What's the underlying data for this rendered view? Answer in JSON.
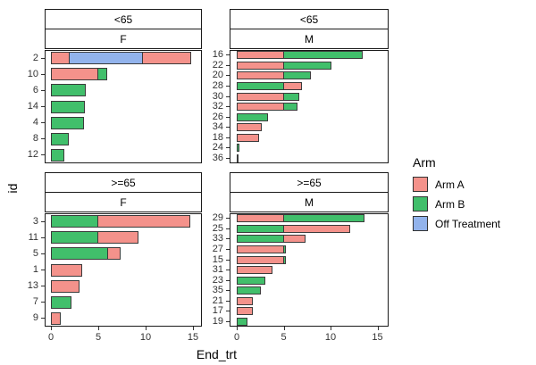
{
  "figure": {
    "y_axis_title": "id",
    "x_axis_title": "End_trt",
    "legend": {
      "title": "Arm",
      "entries": [
        {
          "label": "Arm A",
          "color": "#F4928B"
        },
        {
          "label": "Arm B",
          "color": "#41BF6B"
        },
        {
          "label": "Off Treatment",
          "color": "#92B3EC"
        }
      ]
    }
  },
  "chart_data": {
    "type": "bar",
    "orientation": "horizontal",
    "stacked": true,
    "title": "",
    "xlabel": "End_trt",
    "ylabel": "id",
    "xlim": [
      0,
      15
    ],
    "x_ticks": [
      0,
      5,
      10,
      15
    ],
    "grid": false,
    "legend_position": "right",
    "arm_colors": {
      "Arm A": "#F4928B",
      "Arm B": "#41BF6B",
      "Off Treatment": "#92B3EC"
    },
    "facets": [
      {
        "row": "top",
        "col": "left",
        "age_label": "<65",
        "sex_label": "F",
        "bars": [
          {
            "id": "2",
            "segments": [
              {
                "arm": "Arm A",
                "value": 2.0
              },
              {
                "arm": "Off Treatment",
                "value": 7.8
              },
              {
                "arm": "Arm A",
                "value": 5.2
              }
            ]
          },
          {
            "id": "10",
            "segments": [
              {
                "arm": "Arm A",
                "value": 5.0
              },
              {
                "arm": "Arm B",
                "value": 1.0
              }
            ]
          },
          {
            "id": "6",
            "segments": [
              {
                "arm": "Arm B",
                "value": 3.7
              }
            ]
          },
          {
            "id": "14",
            "segments": [
              {
                "arm": "Arm B",
                "value": 3.6
              }
            ]
          },
          {
            "id": "4",
            "segments": [
              {
                "arm": "Arm B",
                "value": 3.5
              }
            ]
          },
          {
            "id": "8",
            "segments": [
              {
                "arm": "Arm B",
                "value": 1.9
              }
            ]
          },
          {
            "id": "12",
            "segments": [
              {
                "arm": "Arm B",
                "value": 1.4
              }
            ]
          }
        ]
      },
      {
        "row": "top",
        "col": "right",
        "age_label": "<65",
        "sex_label": "M",
        "bars": [
          {
            "id": "16",
            "segments": [
              {
                "arm": "Arm A",
                "value": 5.0
              },
              {
                "arm": "Arm B",
                "value": 8.5
              }
            ]
          },
          {
            "id": "22",
            "segments": [
              {
                "arm": "Arm A",
                "value": 5.0
              },
              {
                "arm": "Arm B",
                "value": 5.2
              }
            ]
          },
          {
            "id": "20",
            "segments": [
              {
                "arm": "Arm A",
                "value": 5.0
              },
              {
                "arm": "Arm B",
                "value": 3.0
              }
            ]
          },
          {
            "id": "28",
            "segments": [
              {
                "arm": "Arm B",
                "value": 5.0
              },
              {
                "arm": "Arm A",
                "value": 2.0
              }
            ]
          },
          {
            "id": "30",
            "segments": [
              {
                "arm": "Arm A",
                "value": 5.0
              },
              {
                "arm": "Arm B",
                "value": 1.8
              }
            ]
          },
          {
            "id": "32",
            "segments": [
              {
                "arm": "Arm A",
                "value": 5.0
              },
              {
                "arm": "Arm B",
                "value": 1.6
              }
            ]
          },
          {
            "id": "26",
            "segments": [
              {
                "arm": "Arm B",
                "value": 3.3
              }
            ]
          },
          {
            "id": "34",
            "segments": [
              {
                "arm": "Arm A",
                "value": 2.7
              }
            ]
          },
          {
            "id": "18",
            "segments": [
              {
                "arm": "Arm A",
                "value": 2.4
              }
            ]
          },
          {
            "id": "24",
            "segments": [
              {
                "arm": "Arm B",
                "value": 0.25
              }
            ]
          },
          {
            "id": "36",
            "segments": [
              {
                "arm": "Arm A",
                "value": 0.2
              }
            ]
          }
        ]
      },
      {
        "row": "bottom",
        "col": "left",
        "age_label": ">=65",
        "sex_label": "F",
        "bars": [
          {
            "id": "3",
            "segments": [
              {
                "arm": "Arm B",
                "value": 5.0
              },
              {
                "arm": "Arm A",
                "value": 9.8
              }
            ]
          },
          {
            "id": "11",
            "segments": [
              {
                "arm": "Arm B",
                "value": 5.0
              },
              {
                "arm": "Arm A",
                "value": 4.3
              }
            ]
          },
          {
            "id": "5",
            "segments": [
              {
                "arm": "Arm B",
                "value": 6.0
              },
              {
                "arm": "Arm A",
                "value": 1.5
              }
            ]
          },
          {
            "id": "1",
            "segments": [
              {
                "arm": "Arm A",
                "value": 3.3
              }
            ]
          },
          {
            "id": "13",
            "segments": [
              {
                "arm": "Arm A",
                "value": 3.0
              }
            ]
          },
          {
            "id": "7",
            "segments": [
              {
                "arm": "Arm B",
                "value": 2.2
              }
            ]
          },
          {
            "id": "9",
            "segments": [
              {
                "arm": "Arm A",
                "value": 1.0
              }
            ]
          }
        ]
      },
      {
        "row": "bottom",
        "col": "right",
        "age_label": ">=65",
        "sex_label": "M",
        "bars": [
          {
            "id": "29",
            "segments": [
              {
                "arm": "Arm A",
                "value": 5.0
              },
              {
                "arm": "Arm B",
                "value": 8.7
              }
            ]
          },
          {
            "id": "25",
            "segments": [
              {
                "arm": "Arm B",
                "value": 5.0
              },
              {
                "arm": "Arm A",
                "value": 7.2
              }
            ]
          },
          {
            "id": "33",
            "segments": [
              {
                "arm": "Arm B",
                "value": 5.0
              },
              {
                "arm": "Arm A",
                "value": 2.4
              }
            ]
          },
          {
            "id": "27",
            "segments": [
              {
                "arm": "Arm A",
                "value": 5.0
              },
              {
                "arm": "Arm B",
                "value": 0.3
              }
            ]
          },
          {
            "id": "15",
            "segments": [
              {
                "arm": "Arm A",
                "value": 5.0
              },
              {
                "arm": "Arm B",
                "value": 0.3
              }
            ]
          },
          {
            "id": "31",
            "segments": [
              {
                "arm": "Arm A",
                "value": 3.8
              }
            ]
          },
          {
            "id": "23",
            "segments": [
              {
                "arm": "Arm B",
                "value": 3.0
              }
            ]
          },
          {
            "id": "35",
            "segments": [
              {
                "arm": "Arm B",
                "value": 2.6
              }
            ]
          },
          {
            "id": "21",
            "segments": [
              {
                "arm": "Arm A",
                "value": 1.7
              }
            ]
          },
          {
            "id": "17",
            "segments": [
              {
                "arm": "Arm A",
                "value": 1.7
              }
            ]
          },
          {
            "id": "19",
            "segments": [
              {
                "arm": "Arm B",
                "value": 1.1
              }
            ]
          }
        ]
      }
    ]
  }
}
